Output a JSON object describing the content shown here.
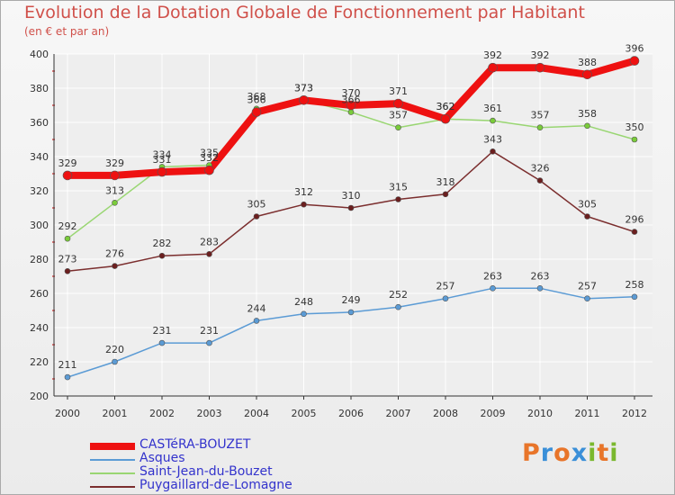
{
  "header": {
    "title": "Evolution de la Dotation Globale de Fonctionnement par Habitant",
    "subtitle": "(en € et par an)"
  },
  "logo": {
    "text": "Proxiti",
    "letters": [
      "P",
      "r",
      "o",
      "x",
      "i",
      "t",
      "i"
    ],
    "colors": [
      "#e8752a",
      "#3a8fd8",
      "#e8752a",
      "#3a8fd8",
      "#7ab82e",
      "#e8752a",
      "#7ab82e"
    ]
  },
  "colors": {
    "frame": "#aaaaaa",
    "gridline": "#ffffff",
    "axis": "#333333",
    "tickmark": "#cc0000",
    "label_text": "#333333"
  },
  "chart_data": {
    "type": "line",
    "title": "Evolution de la Dotation Globale de Fonctionnement par Habitant",
    "subtitle": "(en € et par an)",
    "xlabel": "",
    "ylabel": "",
    "x": [
      "2000",
      "2001",
      "2002",
      "2003",
      "2004",
      "2005",
      "2006",
      "2007",
      "2008",
      "2009",
      "2010",
      "2011",
      "2012"
    ],
    "ylim": [
      200,
      400
    ],
    "yticks": [
      "200",
      "220",
      "240",
      "260",
      "280",
      "300",
      "320",
      "340",
      "360",
      "380",
      "400"
    ],
    "grid": true,
    "legend_position": "bottom-left",
    "series": [
      {
        "name": "Asques",
        "values": [
          211,
          220,
          231,
          231,
          244,
          248,
          249,
          252,
          257,
          263,
          263,
          257,
          258
        ],
        "color": "#5b9bd5",
        "marker": "#5b9bd5"
      },
      {
        "name": "Puygaillard-de-Lomagne",
        "values": [
          273,
          276,
          282,
          283,
          305,
          312,
          310,
          315,
          318,
          343,
          326,
          305,
          296
        ],
        "color": "#7b2e2e",
        "marker": "#6b1f1f"
      },
      {
        "name": "Saint-Jean-du-Bouzet",
        "values": [
          292,
          313,
          334,
          335,
          368,
          373,
          366,
          357,
          362,
          361,
          357,
          358,
          350
        ],
        "color": "#99d672",
        "marker": "#7acc3a"
      },
      {
        "name": "CASTéRA-BOUZET",
        "values": [
          329,
          329,
          331,
          332,
          366,
          373,
          370,
          371,
          362,
          392,
          392,
          388,
          396
        ],
        "color": "#ee1111",
        "marker": "#ee1111"
      }
    ],
    "legend": [
      "CASTéRA-BOUZET",
      "Asques",
      "Saint-Jean-du-Bouzet",
      "Puygaillard-de-Lomagne"
    ],
    "data_labels": [
      {
        "series": "Asques",
        "labels": [
          "211",
          "220",
          "231",
          "231",
          "244",
          "248",
          "249",
          "252",
          "257",
          "263",
          "263",
          "257",
          "258"
        ]
      },
      {
        "series": "Puygaillard-de-Lomagne",
        "labels": [
          "273",
          "276",
          "282",
          "283",
          "305",
          "312",
          "310",
          "315",
          "318",
          "343",
          "326",
          "305",
          "296"
        ]
      },
      {
        "series": "Saint-Jean-du-Bouzet",
        "labels": [
          "292",
          "313",
          "334",
          "335",
          "368",
          "373",
          "366",
          "357",
          "362",
          "361",
          "357",
          "358",
          "350"
        ]
      },
      {
        "series": "CASTéRA-BOUZET",
        "labels": [
          "329",
          "329",
          "331",
          "332",
          "366",
          "373",
          "370",
          "371",
          "362",
          "392",
          "392",
          "388",
          "396"
        ]
      }
    ]
  }
}
